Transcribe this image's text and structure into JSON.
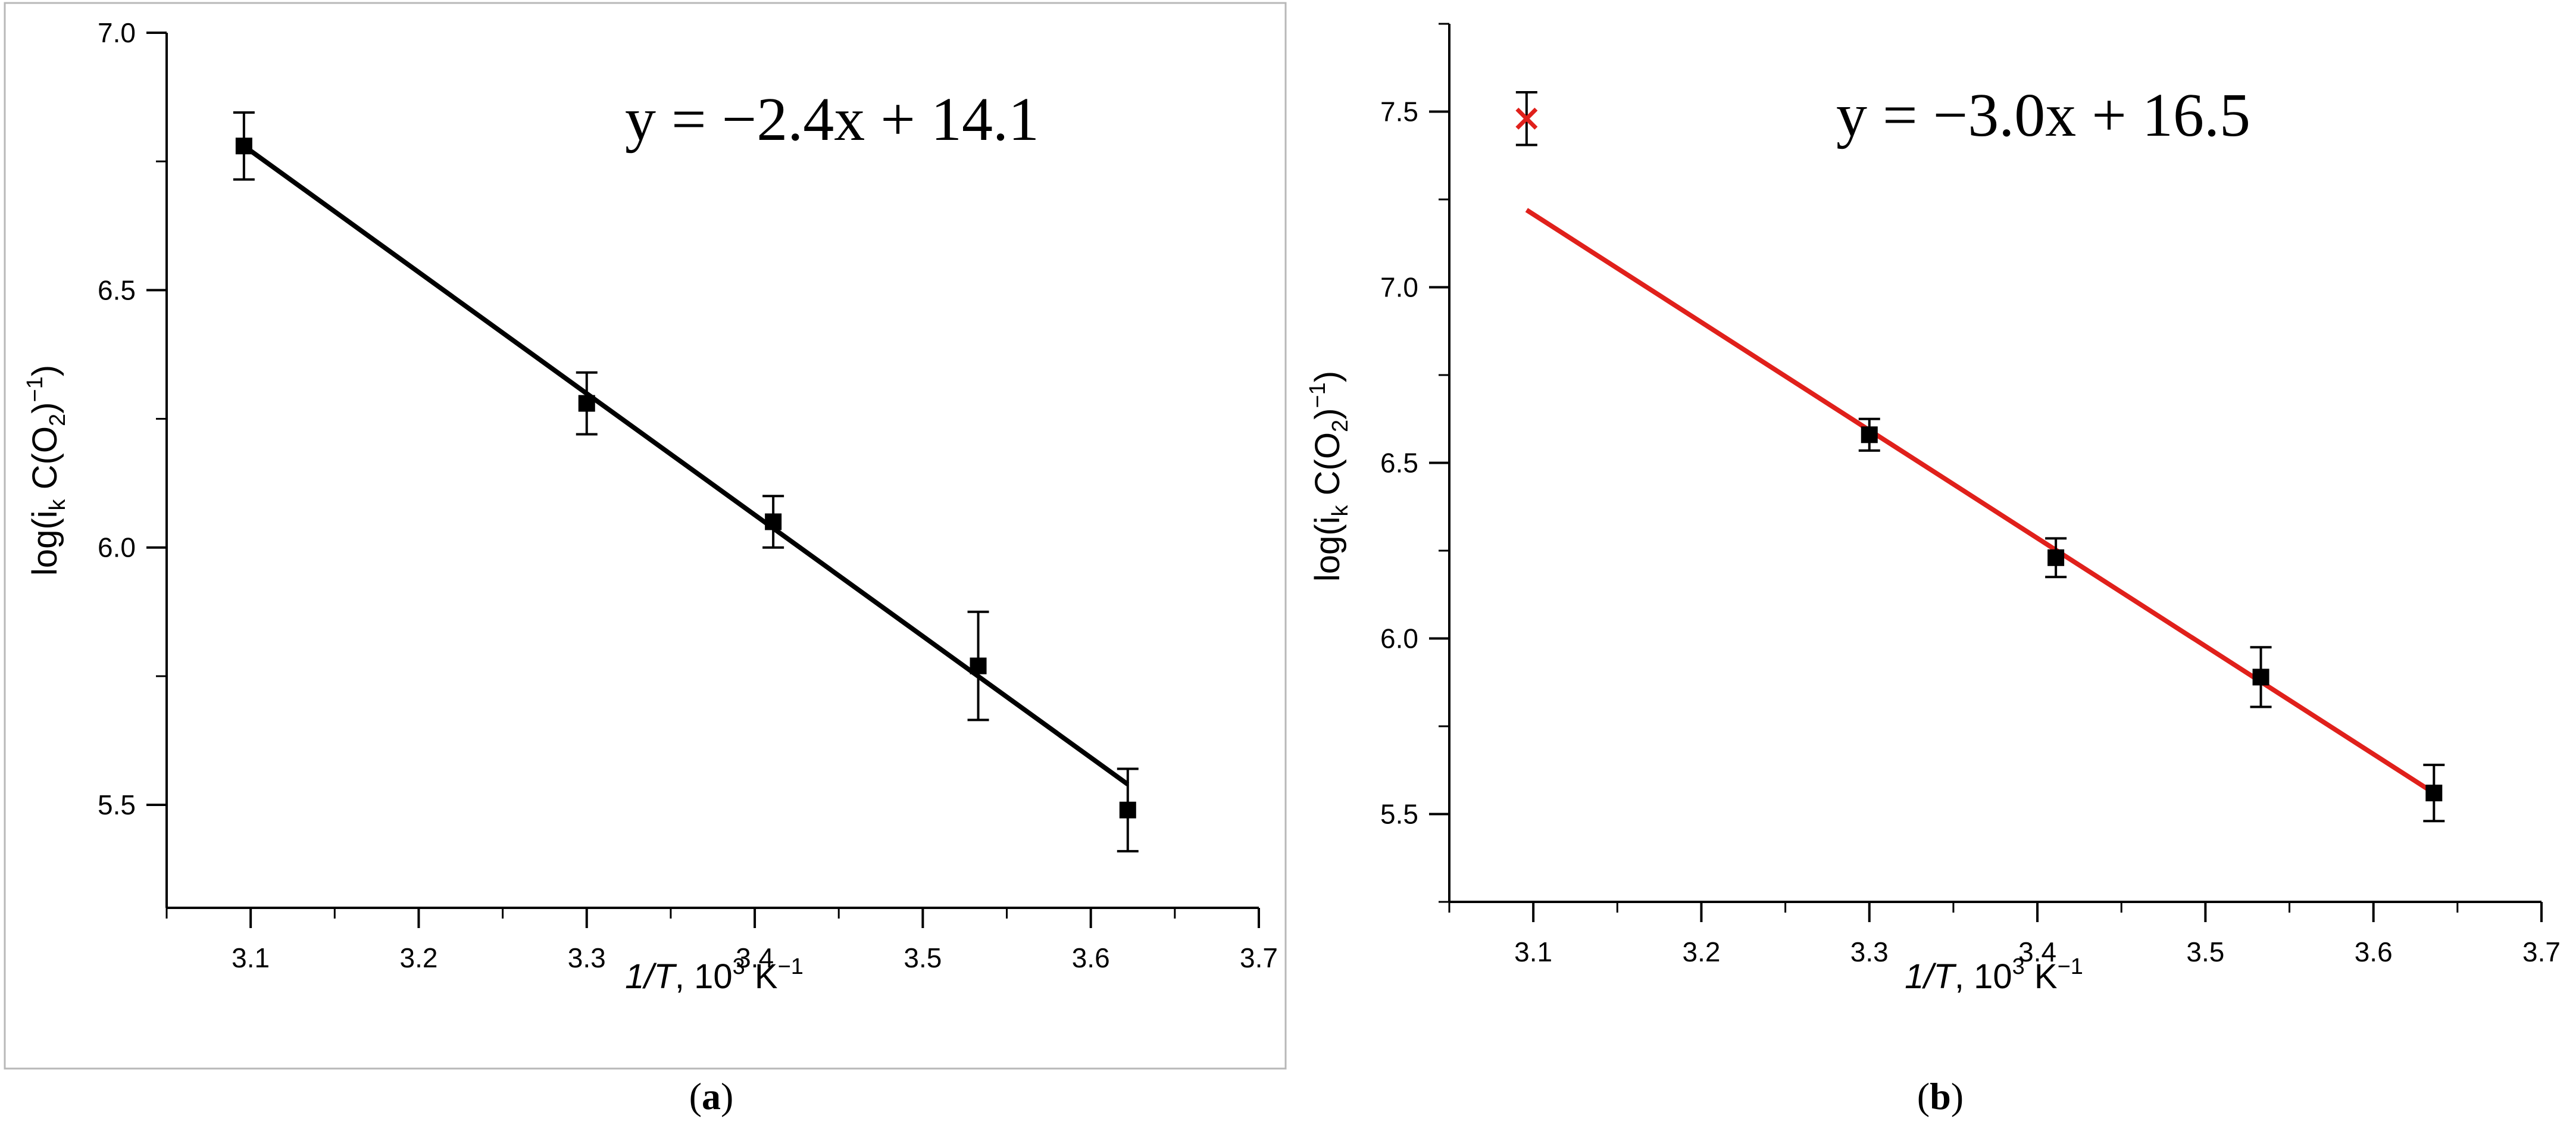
{
  "chart_data": [
    {
      "type": "scatter",
      "panel_label": "a",
      "caption": {
        "open": "(",
        "letter": "a",
        "close": ")"
      },
      "equation": "y = −2.4x + 14.1",
      "xlabel": {
        "italic": "1/T",
        "plain": ", 10",
        "sup": "3",
        "unit": " K",
        "unit_sup": "−1"
      },
      "ylabel": {
        "pre": "log(i",
        "sub1": "k",
        "mid": " C(O",
        "sub2": "2",
        "post": ")",
        "sup": "−1",
        "end": ")"
      },
      "xlim": [
        3.05,
        3.7
      ],
      "ylim": [
        5.3,
        7.0
      ],
      "xticks": [
        3.1,
        3.2,
        3.3,
        3.4,
        3.5,
        3.6,
        3.7
      ],
      "xtick_labels": [
        "3.1",
        "3.2",
        "3.3",
        "3.4",
        "3.5",
        "3.6",
        "3.7"
      ],
      "yticks": [
        5.5,
        6.0,
        6.5,
        7.0
      ],
      "ytick_labels": [
        "5.5",
        "6.0",
        "6.5",
        "7.0"
      ],
      "points": [
        {
          "x": 3.096,
          "y": 6.78,
          "err": 0.065
        },
        {
          "x": 3.3,
          "y": 6.28,
          "err": 0.06
        },
        {
          "x": 3.411,
          "y": 6.05,
          "err": 0.05
        },
        {
          "x": 3.533,
          "y": 5.77,
          "err": 0.105
        },
        {
          "x": 3.622,
          "y": 5.49,
          "err": 0.08
        }
      ],
      "outlier": null,
      "fit": {
        "x_start": 3.096,
        "y_start": 6.78,
        "x_end": 3.622,
        "y_end": 5.54
      },
      "fit_color": "#000000",
      "box": "full"
    },
    {
      "type": "scatter",
      "panel_label": "b",
      "caption": {
        "open": "(",
        "letter": "b",
        "close": ")"
      },
      "equation": "y = −3.0x + 16.5",
      "xlabel": {
        "italic": "1/T",
        "plain": ", 10",
        "sup": "3",
        "unit": " K",
        "unit_sup": "−1"
      },
      "ylabel": {
        "pre": "log(i",
        "sub1": "k",
        "mid": " C(O",
        "sub2": "2",
        "post": ")",
        "sup": "−1",
        "end": ")"
      },
      "xlim": [
        3.05,
        3.7
      ],
      "ylim": [
        5.25,
        7.75
      ],
      "xticks": [
        3.1,
        3.2,
        3.3,
        3.4,
        3.5,
        3.6,
        3.7
      ],
      "xtick_labels": [
        "3.1",
        "3.2",
        "3.3",
        "3.4",
        "3.5",
        "3.6",
        "3.7"
      ],
      "yticks": [
        5.5,
        6.0,
        6.5,
        7.0,
        7.5
      ],
      "ytick_labels": [
        "5.5",
        "6.0",
        "6.5",
        "7.0",
        "7.5"
      ],
      "points": [
        {
          "x": 3.3,
          "y": 6.58,
          "err": 0.045
        },
        {
          "x": 3.411,
          "y": 6.23,
          "err": 0.055
        },
        {
          "x": 3.533,
          "y": 5.89,
          "err": 0.085
        },
        {
          "x": 3.636,
          "y": 5.56,
          "err": 0.08
        }
      ],
      "outlier": {
        "x": 3.096,
        "y": 7.48,
        "err": 0.075,
        "color": "#e0201b"
      },
      "fit": {
        "x_start": 3.096,
        "y_start": 7.22,
        "x_end": 3.636,
        "y_end": 5.56
      },
      "fit_color": "#e0201b",
      "box": "axes"
    }
  ]
}
